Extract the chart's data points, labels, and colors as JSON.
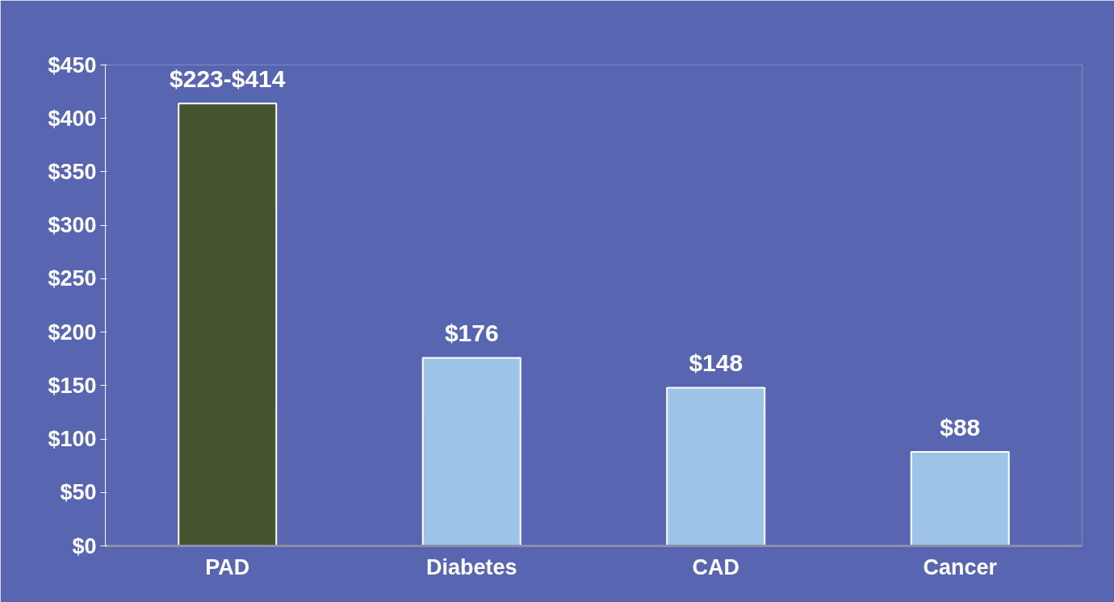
{
  "chart_data": {
    "type": "bar",
    "categories": [
      "PAD",
      "Diabetes",
      "CAD",
      "Cancer"
    ],
    "values": [
      414,
      176,
      148,
      88
    ],
    "colors": [
      "#445330",
      "#9dc3e6",
      "#9dc3e6",
      "#9dc3e6"
    ],
    "value_labels": [
      "$223-$414",
      "$176",
      "$148",
      "$88"
    ],
    "ylim": [
      0,
      450
    ],
    "yticks": [
      {
        "value": 0,
        "label": "$0"
      },
      {
        "value": 50,
        "label": "$50"
      },
      {
        "value": 100,
        "label": "$100"
      },
      {
        "value": 150,
        "label": "$150"
      },
      {
        "value": 200,
        "label": "$200"
      },
      {
        "value": 250,
        "label": "$250"
      },
      {
        "value": 300,
        "label": "$300"
      },
      {
        "value": 350,
        "label": "$350"
      },
      {
        "value": 400,
        "label": "$400"
      },
      {
        "value": 450,
        "label": "$450"
      }
    ],
    "grid": false
  }
}
